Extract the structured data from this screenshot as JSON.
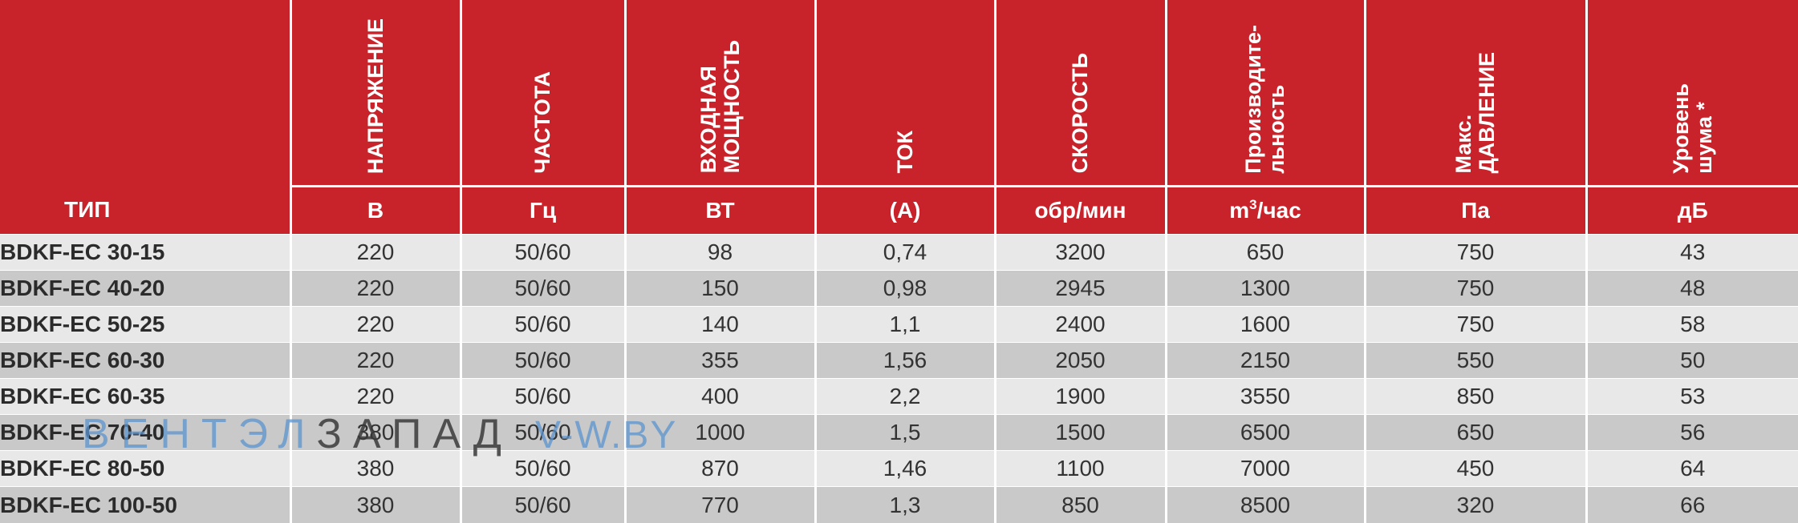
{
  "table": {
    "type_label": "ТИП",
    "columns": [
      {
        "title": "НАПРЯЖЕНИЕ",
        "unit": "В"
      },
      {
        "title": "ЧАСТОТА",
        "unit": "Гц"
      },
      {
        "title": "ВХОДНАЯ\nМОЩНОСТЬ",
        "unit": "ВТ"
      },
      {
        "title": "ТОК",
        "unit": "(А)"
      },
      {
        "title": "СКОРОСТЬ",
        "unit": "обр/мин"
      },
      {
        "title": "Производите-\nльность",
        "unit_pre": "m",
        "unit_sup": "3",
        "unit_post": "/час"
      },
      {
        "title": "Макс.\nДАВЛЕНИЕ",
        "unit": "Па"
      },
      {
        "title": "Уровень\nшума *",
        "unit": "дБ"
      }
    ],
    "rows": [
      {
        "name": "BDKF-EC 30-15",
        "values": [
          "220",
          "50/60",
          "98",
          "0,74",
          "3200",
          "650",
          "750",
          "43"
        ]
      },
      {
        "name": "BDKF-EC 40-20",
        "values": [
          "220",
          "50/60",
          "150",
          "0,98",
          "2945",
          "1300",
          "750",
          "48"
        ]
      },
      {
        "name": "BDKF-EC 50-25",
        "values": [
          "220",
          "50/60",
          "140",
          "1,1",
          "2400",
          "1600",
          "750",
          "58"
        ]
      },
      {
        "name": "BDKF-EC 60-30",
        "values": [
          "220",
          "50/60",
          "355",
          "1,56",
          "2050",
          "2150",
          "550",
          "50"
        ]
      },
      {
        "name": "BDKF-EC 60-35",
        "values": [
          "220",
          "50/60",
          "400",
          "2,2",
          "1900",
          "3550",
          "850",
          "53"
        ]
      },
      {
        "name": "BDKF-EC 70-40",
        "values": [
          "380",
          "50/60",
          "1000",
          "1,5",
          "1500",
          "6500",
          "650",
          "56"
        ]
      },
      {
        "name": "BDKF-EC 80-50",
        "values": [
          "380",
          "50/60",
          "870",
          "1,46",
          "1100",
          "7000",
          "450",
          "64"
        ]
      },
      {
        "name": "BDKF-EC 100-50",
        "values": [
          "380",
          "50/60",
          "770",
          "1,3",
          "850",
          "8500",
          "320",
          "66"
        ]
      }
    ]
  },
  "watermark": {
    "part1": "ВЕНТЭЛ",
    "part2": "ЗАПАД",
    "part3": "V-W.BY"
  },
  "colors": {
    "header_red": "#c8232a",
    "row_light": "#e8e8e8",
    "row_dark": "#c9c9ca"
  }
}
